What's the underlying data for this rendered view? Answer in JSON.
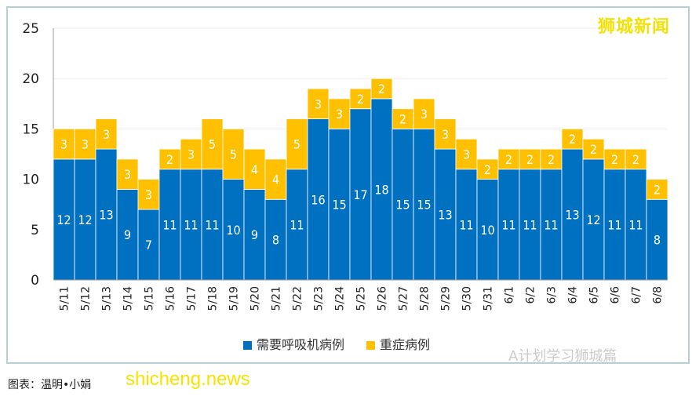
{
  "logo": "狮城新闻",
  "credit": "图表：温明•小娟",
  "watermarks": {
    "site": "shicheng.news",
    "wechat": "A计划学习狮城篇"
  },
  "colors": {
    "blue": "#0070c0",
    "yellow": "#ffc000"
  },
  "chart_data": {
    "type": "bar",
    "stacked": true,
    "categories": [
      "5/11",
      "5/12",
      "5/13",
      "5/14",
      "5/15",
      "5/16",
      "5/17",
      "5/18",
      "5/19",
      "5/20",
      "5/21",
      "5/22",
      "5/23",
      "5/24",
      "5/25",
      "5/26",
      "5/27",
      "5/28",
      "5/29",
      "5/30",
      "5/31",
      "6/1",
      "6/2",
      "6/3",
      "6/4",
      "6/5",
      "6/6",
      "6/7",
      "6/8"
    ],
    "series": [
      {
        "name": "需要呼吸机病例",
        "color": "#0070c0",
        "values": [
          12,
          12,
          13,
          9,
          7,
          11,
          11,
          11,
          10,
          9,
          8,
          11,
          16,
          15,
          17,
          18,
          15,
          15,
          13,
          11,
          10,
          11,
          11,
          11,
          13,
          12,
          11,
          11,
          8
        ]
      },
      {
        "name": "重症病例",
        "color": "#ffc000",
        "values": [
          3,
          3,
          3,
          3,
          3,
          2,
          3,
          5,
          5,
          4,
          4,
          5,
          3,
          3,
          2,
          2,
          2,
          3,
          3,
          3,
          2,
          2,
          2,
          2,
          2,
          2,
          2,
          2,
          2
        ]
      }
    ],
    "ylim": [
      0,
      25
    ],
    "yticks": [
      0,
      5,
      10,
      15,
      20,
      25
    ],
    "grid": true,
    "legend": "bottom"
  }
}
